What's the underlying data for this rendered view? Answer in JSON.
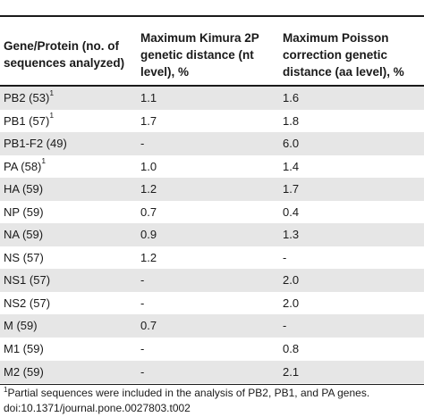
{
  "table": {
    "headers": {
      "col1": [
        "Gene/Protein (no. of",
        "sequences analyzed)"
      ],
      "col2": [
        "Maximum Kimura 2P",
        "genetic distance (nt",
        "level), %"
      ],
      "col3": [
        "Maximum Poisson",
        "correction genetic",
        "distance (aa level), %"
      ]
    },
    "rows": [
      {
        "gene": "PB2 (53)",
        "footnote_mark": "1",
        "nt": "1.1",
        "aa": "1.6"
      },
      {
        "gene": "PB1 (57)",
        "footnote_mark": "1",
        "nt": "1.7",
        "aa": "1.8"
      },
      {
        "gene": "PB1-F2 (49)",
        "footnote_mark": "",
        "nt": "-",
        "aa": "6.0"
      },
      {
        "gene": "PA (58)",
        "footnote_mark": "1",
        "nt": "1.0",
        "aa": "1.4"
      },
      {
        "gene": "HA (59)",
        "footnote_mark": "",
        "nt": "1.2",
        "aa": "1.7"
      },
      {
        "gene": "NP (59)",
        "footnote_mark": "",
        "nt": "0.7",
        "aa": "0.4"
      },
      {
        "gene": "NA (59)",
        "footnote_mark": "",
        "nt": "0.9",
        "aa": "1.3"
      },
      {
        "gene": "NS (57)",
        "footnote_mark": "",
        "nt": "1.2",
        "aa": "-"
      },
      {
        "gene": "NS1 (57)",
        "footnote_mark": "",
        "nt": "-",
        "aa": "2.0"
      },
      {
        "gene": "NS2 (57)",
        "footnote_mark": "",
        "nt": "-",
        "aa": "2.0"
      },
      {
        "gene": "M (59)",
        "footnote_mark": "",
        "nt": "0.7",
        "aa": "-"
      },
      {
        "gene": "M1 (59)",
        "footnote_mark": "",
        "nt": "-",
        "aa": "0.8"
      },
      {
        "gene": "M2 (59)",
        "footnote_mark": "",
        "nt": "-",
        "aa": "2.1"
      }
    ]
  },
  "footnote": {
    "mark": "1",
    "text": "Partial sequences were included in the analysis of PB2, PB1, and PA genes."
  },
  "doi": "doi:10.1371/journal.pone.0027803.t002"
}
